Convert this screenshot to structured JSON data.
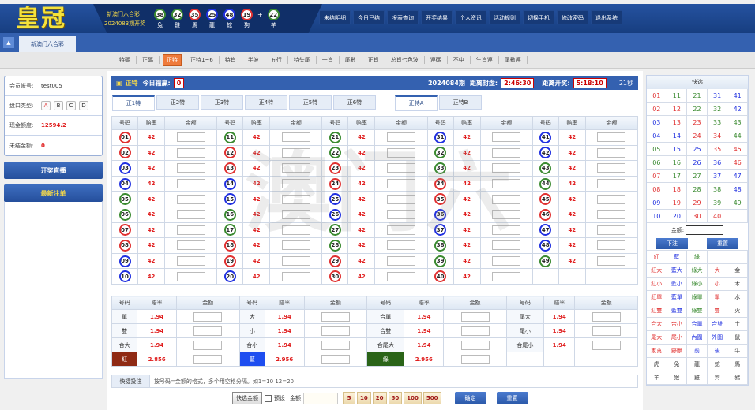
{
  "header": {
    "logo": "皇冠",
    "lottery_name": "新澳门六合彩",
    "period": "2024083期开奖",
    "balls": [
      {
        "num": "38",
        "zodiac": "兔",
        "color": "green"
      },
      {
        "num": "32",
        "zodiac": "雞",
        "color": "green"
      },
      {
        "num": "35",
        "zodiac": "馬",
        "color": "red"
      },
      {
        "num": "25",
        "zodiac": "龍",
        "color": "blue"
      },
      {
        "num": "48",
        "zodiac": "蛇",
        "color": "blue"
      },
      {
        "num": "19",
        "zodiac": "狗",
        "color": "red"
      }
    ],
    "special_ball": {
      "num": "22",
      "zodiac": "羊",
      "color": "green"
    },
    "plus": "+",
    "nav": [
      "未结明细",
      "今日已结",
      "报表查询",
      "开奖结果",
      "个人资讯",
      "活动规则",
      "切换手机",
      "修改密码",
      "退出系统"
    ]
  },
  "tabbar": {
    "game_tab": "新澳门六合彩",
    "collapse_icon": "triangle-up"
  },
  "submenu": {
    "items": [
      "特碼",
      "正碼",
      "正特",
      "正特1~6",
      "特肖",
      "半波",
      "五行",
      "特头尾",
      "一肖",
      "尾數",
      "正肖",
      "总肖七色波",
      "連碼",
      "不中",
      "生肖連",
      "尾數連"
    ],
    "active": "正特"
  },
  "left": {
    "account_label": "会员帐号:",
    "account": "test005",
    "plate_label": "盘口类型:",
    "plates": [
      "A",
      "B",
      "C",
      "D"
    ],
    "active_plate": "A",
    "credit_label": "现金额度:",
    "credit": "12594.2",
    "unsettled_label": "未结金额:",
    "unsettled": "0",
    "live_button": "开奖直播",
    "latest_button": "最新注单"
  },
  "main": {
    "title": "正特",
    "today_label": "今日输赢:",
    "today_value": "0",
    "period": "2024084期",
    "close_label": "距离封盘:",
    "close_time": "2:46:30",
    "draw_label": "距离开奖:",
    "draw_time": "5:18:10",
    "refresh": "21秒",
    "tabs": [
      "正1特",
      "正2特",
      "正3特",
      "正4特",
      "正5特",
      "正6特",
      "正特A",
      "正特B"
    ],
    "active_tabs": [
      "正1特",
      "正特A"
    ],
    "headers": [
      "号码",
      "赔率",
      "金额"
    ],
    "odds": "42",
    "watermark": "澳门六",
    "bottom_rows": [
      [
        {
          "label": "單",
          "odds": "1.94"
        },
        {
          "label": "大",
          "odds": "1.94"
        },
        {
          "label": "合單",
          "odds": "1.94"
        },
        {
          "label": "尾大",
          "odds": "1.94"
        }
      ],
      [
        {
          "label": "雙",
          "odds": "1.94"
        },
        {
          "label": "小",
          "odds": "1.94"
        },
        {
          "label": "合雙",
          "odds": "1.94"
        },
        {
          "label": "尾小",
          "odds": "1.94"
        }
      ],
      [
        {
          "label": "合大",
          "odds": "1.94"
        },
        {
          "label": "合小",
          "odds": "1.94"
        },
        {
          "label": "合尾大",
          "odds": "1.94"
        },
        {
          "label": "合尾小",
          "odds": "1.94"
        }
      ],
      [
        {
          "label": "紅",
          "odds": "2.856",
          "bg": "#8f2a14"
        },
        {
          "label": "藍",
          "odds": "2.956",
          "bg": "#1e4ef0"
        },
        {
          "label": "綠",
          "odds": "2.956",
          "bg": "#2a6418"
        },
        null
      ]
    ],
    "quick_label": "快捷投注",
    "quick_placeholder": "按号码=金额的格式，多个用空格分隔。如1=10 12=20",
    "quick_amount_button": "快选金额",
    "preset_label": "预设",
    "amount_label": "金额",
    "chips": [
      "5",
      "10",
      "20",
      "50",
      "100",
      "500"
    ],
    "confirm": "确定",
    "reset": "重置"
  },
  "right": {
    "title": "快选",
    "amount_label": "金额:",
    "bet": "下注",
    "reset": "重置",
    "grid": [
      [
        [
          "紅",
          "r"
        ],
        [
          "藍",
          "b"
        ],
        [
          "綠",
          "g"
        ],
        [
          "",
          ""
        ],
        [
          "",
          ""
        ]
      ],
      [
        [
          "紅大",
          "r"
        ],
        [
          "藍大",
          "b"
        ],
        [
          "綠大",
          "g"
        ],
        [
          "大",
          "r"
        ],
        [
          "金",
          "k"
        ]
      ],
      [
        [
          "紅小",
          "r"
        ],
        [
          "藍小",
          "b"
        ],
        [
          "綠小",
          "g"
        ],
        [
          "小",
          "r"
        ],
        [
          "木",
          "k"
        ]
      ],
      [
        [
          "紅單",
          "r"
        ],
        [
          "藍單",
          "b"
        ],
        [
          "綠單",
          "g"
        ],
        [
          "單",
          "r"
        ],
        [
          "水",
          "k"
        ]
      ],
      [
        [
          "紅雙",
          "r"
        ],
        [
          "藍雙",
          "b"
        ],
        [
          "綠雙",
          "g"
        ],
        [
          "雙",
          "r"
        ],
        [
          "火",
          "k"
        ]
      ],
      [
        [
          "合大",
          "r"
        ],
        [
          "合小",
          "r"
        ],
        [
          "合單",
          "b"
        ],
        [
          "合雙",
          "b"
        ],
        [
          "土",
          "k"
        ]
      ],
      [
        [
          "尾大",
          "r"
        ],
        [
          "尾小",
          "r"
        ],
        [
          "內圍",
          "b"
        ],
        [
          "外圍",
          "b"
        ],
        [
          "鼠",
          "k"
        ]
      ],
      [
        [
          "家禽",
          "r"
        ],
        [
          "野獸",
          "r"
        ],
        [
          "前",
          "b"
        ],
        [
          "後",
          "b"
        ],
        [
          "牛",
          "k"
        ]
      ],
      [
        [
          "虎",
          "k"
        ],
        [
          "兔",
          "k"
        ],
        [
          "龍",
          "k"
        ],
        [
          "蛇",
          "k"
        ],
        [
          "馬",
          "k"
        ]
      ],
      [
        [
          "羊",
          "k"
        ],
        [
          "猴",
          "k"
        ],
        [
          "雞",
          "k"
        ],
        [
          "狗",
          "k"
        ],
        [
          "豬",
          "k"
        ]
      ]
    ]
  },
  "colors": {
    "red": "#e03030",
    "blue": "#2030e0",
    "green": "#3a8a30",
    "black": "#444444",
    "accent": "#3461b0",
    "active_menu": "#ef7b3c"
  },
  "number_colors": {
    "red": [
      "01",
      "02",
      "07",
      "08",
      "12",
      "13",
      "18",
      "19",
      "23",
      "24",
      "29",
      "30",
      "34",
      "35",
      "40",
      "45",
      "46"
    ],
    "blue": [
      "03",
      "04",
      "09",
      "10",
      "14",
      "15",
      "20",
      "25",
      "26",
      "31",
      "36",
      "37",
      "41",
      "42",
      "47",
      "48"
    ],
    "green": [
      "05",
      "06",
      "11",
      "16",
      "17",
      "21",
      "22",
      "27",
      "28",
      "32",
      "33",
      "38",
      "39",
      "43",
      "44",
      "49"
    ]
  }
}
